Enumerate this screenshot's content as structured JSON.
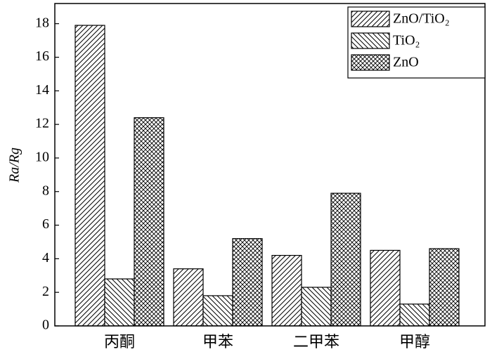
{
  "chart_data": {
    "type": "bar",
    "ylabel": "Ra/Rg",
    "categories": [
      "丙酮",
      "甲苯",
      "二甲苯",
      "甲醇"
    ],
    "series": [
      {
        "name": "ZnO/TiO₂",
        "color": "#000000",
        "hatch": "/",
        "values": [
          17.9,
          3.4,
          4.2,
          4.5
        ]
      },
      {
        "name": "TiO₂",
        "color": "#000000",
        "hatch": "\\",
        "values": [
          2.8,
          1.8,
          2.3,
          1.3
        ]
      },
      {
        "name": "ZnO",
        "color": "#000000",
        "hatch": "x",
        "values": [
          12.4,
          5.2,
          7.9,
          4.6
        ]
      }
    ],
    "ylim": [
      0,
      19.2
    ],
    "yticks": [
      0,
      2,
      4,
      6,
      8,
      10,
      12,
      14,
      16,
      18
    ],
    "legend": "upper right"
  }
}
